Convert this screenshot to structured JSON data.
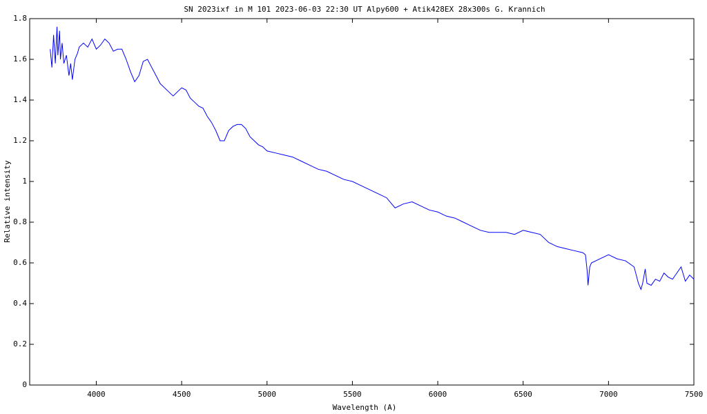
{
  "chart_data": {
    "type": "line",
    "title": "SN 2023ixf in M 101   2023-06-03 22:30 UT   Alpy600 + Atik428EX  28x300s   G. Krannich",
    "x_label": "Wavelength (A)",
    "y_label": "Relative intensity",
    "xlim": [
      3610,
      7500
    ],
    "ylim": [
      0,
      1.8
    ],
    "xticks": [
      4000,
      4500,
      5000,
      5500,
      6000,
      6500,
      7000,
      7500
    ],
    "yticks": [
      0,
      0.2,
      0.4,
      0.6,
      0.8,
      1,
      1.2,
      1.4,
      1.6,
      1.8
    ],
    "series": [
      {
        "color": "#0000ff",
        "x": [
          3730,
          3740,
          3750,
          3760,
          3770,
          3775,
          3785,
          3790,
          3800,
          3810,
          3825,
          3840,
          3850,
          3860,
          3875,
          3890,
          3900,
          3925,
          3950,
          3975,
          4000,
          4025,
          4050,
          4075,
          4100,
          4125,
          4150,
          4175,
          4200,
          4225,
          4250,
          4275,
          4300,
          4325,
          4350,
          4375,
          4400,
          4425,
          4450,
          4475,
          4500,
          4525,
          4550,
          4575,
          4600,
          4625,
          4650,
          4675,
          4700,
          4725,
          4750,
          4775,
          4800,
          4825,
          4850,
          4875,
          4900,
          4925,
          4950,
          4975,
          5000,
          5050,
          5100,
          5150,
          5200,
          5250,
          5300,
          5350,
          5400,
          5450,
          5500,
          5550,
          5600,
          5650,
          5700,
          5750,
          5800,
          5850,
          5900,
          5950,
          6000,
          6050,
          6100,
          6150,
          6200,
          6250,
          6300,
          6350,
          6400,
          6450,
          6500,
          6550,
          6600,
          6650,
          6700,
          6750,
          6800,
          6850,
          6865,
          6875,
          6880,
          6890,
          6900,
          6950,
          7000,
          7050,
          7100,
          7150,
          7175,
          7190,
          7200,
          7215,
          7225,
          7250,
          7275,
          7300,
          7325,
          7350,
          7375,
          7400,
          7425,
          7450,
          7475,
          7500
        ],
        "values": [
          1.65,
          1.56,
          1.72,
          1.58,
          1.76,
          1.62,
          1.74,
          1.6,
          1.68,
          1.58,
          1.62,
          1.52,
          1.58,
          1.5,
          1.6,
          1.63,
          1.66,
          1.68,
          1.66,
          1.7,
          1.65,
          1.67,
          1.7,
          1.68,
          1.64,
          1.65,
          1.65,
          1.6,
          1.54,
          1.49,
          1.52,
          1.59,
          1.6,
          1.56,
          1.52,
          1.48,
          1.46,
          1.44,
          1.42,
          1.44,
          1.46,
          1.45,
          1.41,
          1.39,
          1.37,
          1.36,
          1.32,
          1.29,
          1.25,
          1.2,
          1.2,
          1.25,
          1.27,
          1.28,
          1.28,
          1.26,
          1.22,
          1.2,
          1.18,
          1.17,
          1.15,
          1.14,
          1.13,
          1.12,
          1.1,
          1.08,
          1.06,
          1.05,
          1.03,
          1.01,
          1.0,
          0.98,
          0.96,
          0.94,
          0.92,
          0.87,
          0.89,
          0.9,
          0.88,
          0.86,
          0.85,
          0.83,
          0.82,
          0.8,
          0.78,
          0.76,
          0.75,
          0.75,
          0.75,
          0.74,
          0.76,
          0.75,
          0.74,
          0.7,
          0.68,
          0.67,
          0.66,
          0.65,
          0.64,
          0.56,
          0.49,
          0.58,
          0.6,
          0.62,
          0.64,
          0.62,
          0.61,
          0.58,
          0.5,
          0.47,
          0.5,
          0.57,
          0.5,
          0.49,
          0.52,
          0.51,
          0.55,
          0.53,
          0.52,
          0.55,
          0.58,
          0.51,
          0.54,
          0.52
        ]
      }
    ]
  }
}
